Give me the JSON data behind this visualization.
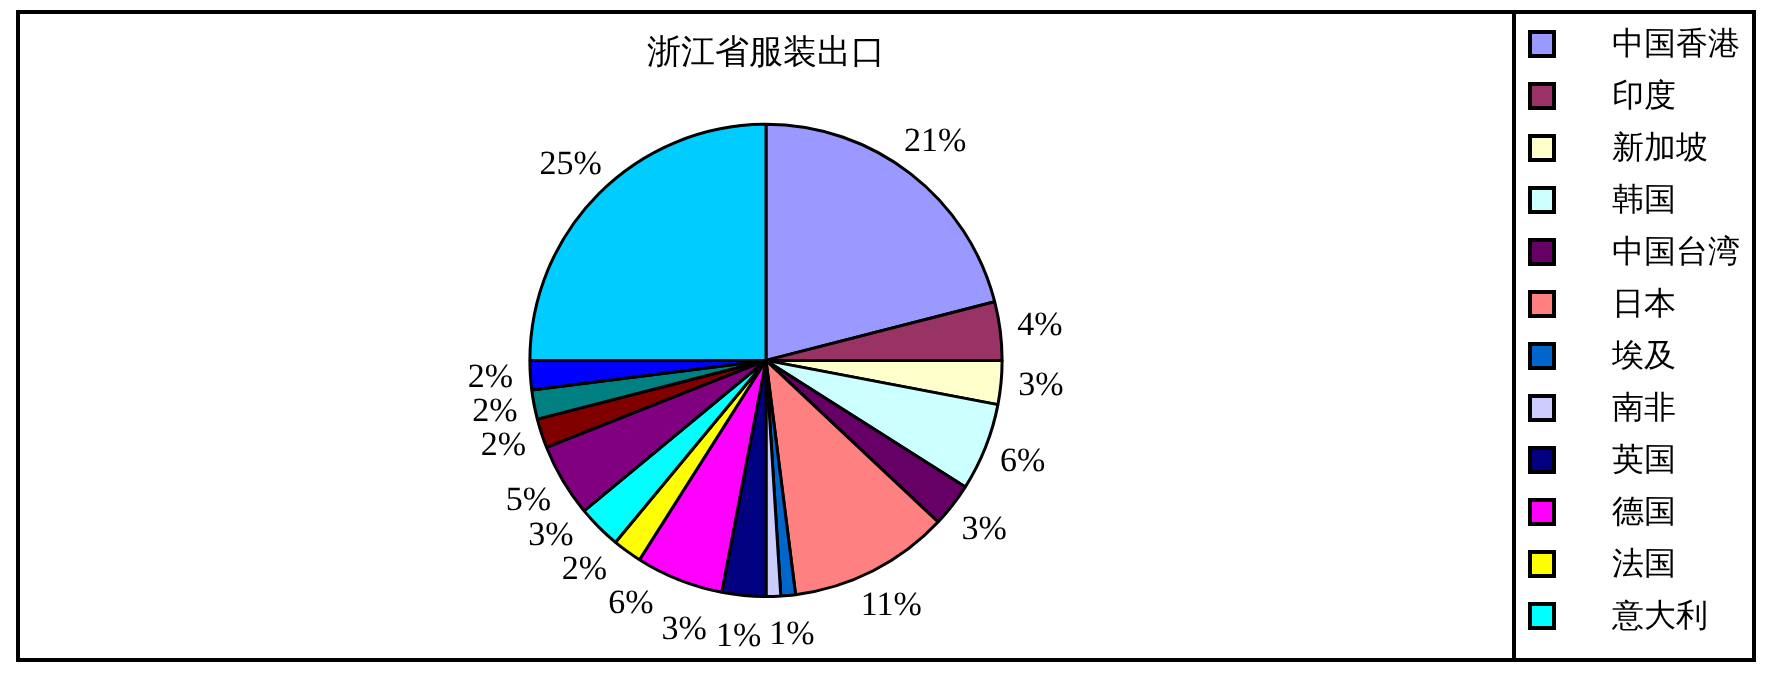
{
  "chart_data": {
    "type": "pie",
    "title": "浙江省服装出口",
    "categories": [
      "中国香港",
      "印度",
      "新加坡",
      "韩国",
      "中国台湾",
      "日本",
      "埃及",
      "南非",
      "英国",
      "德国",
      "法国",
      "意大利",
      null,
      null,
      null,
      null,
      null
    ],
    "values": [
      21,
      4,
      3,
      6,
      3,
      11,
      1,
      1,
      3,
      6,
      2,
      3,
      5,
      2,
      2,
      2,
      25
    ],
    "value_labels": [
      "21%",
      "4%",
      "3%",
      "6%",
      "3%",
      "11%",
      "1%",
      "1%",
      "3%",
      "6%",
      "2%",
      "3%",
      "5%",
      "2%",
      "2%",
      "2%",
      "25%"
    ],
    "colors": [
      "#9999ff",
      "#993366",
      "#ffffcc",
      "#ccffff",
      "#660066",
      "#ff8080",
      "#0066cc",
      "#ccccff",
      "#000080",
      "#ff00ff",
      "#ffff00",
      "#00ffff",
      "#800080",
      "#800000",
      "#008080",
      "#0000ff",
      "#00ccff"
    ],
    "legend": "right"
  }
}
